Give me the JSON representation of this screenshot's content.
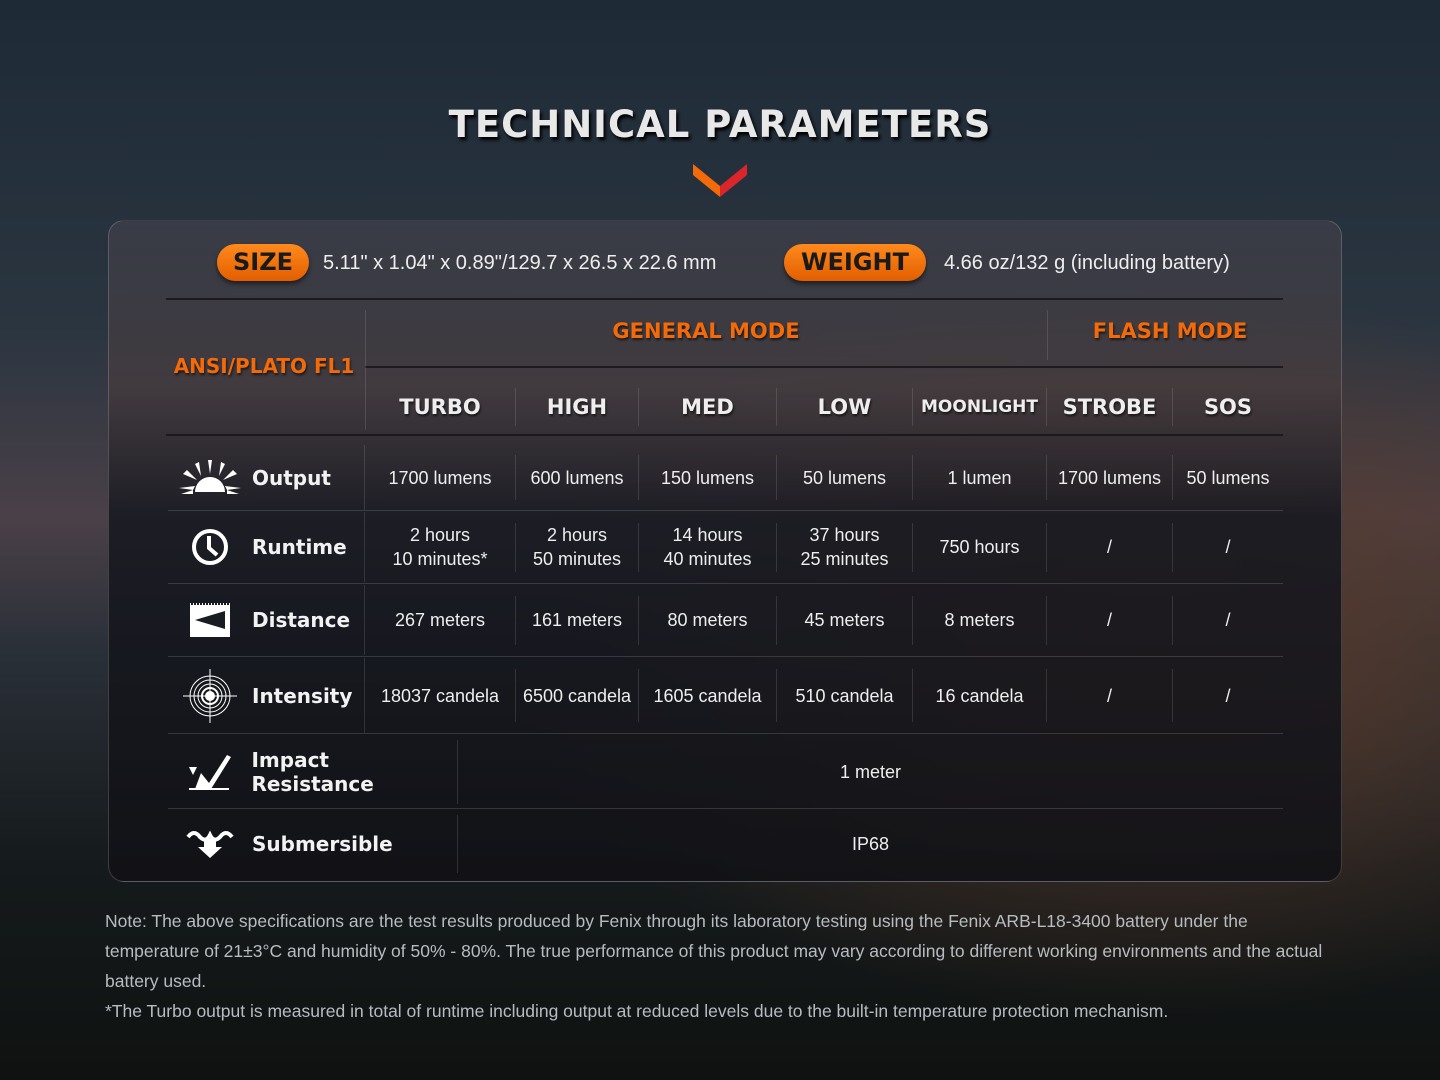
{
  "title": "TECHNICAL PARAMETERS",
  "size": {
    "label": "SIZE",
    "value": "5.11\" x 1.04\" x 0.89\"/129.7 x 26.5 x 22.6 mm"
  },
  "weight": {
    "label": "WEIGHT",
    "value": "4.66 oz/132 g (including battery)"
  },
  "header": {
    "standard": "ANSI/PLATO FL1",
    "general": "GENERAL MODE",
    "flash": "FLASH MODE",
    "modes": [
      "TURBO",
      "HIGH",
      "MED",
      "LOW",
      "MOONLIGHT",
      "STROBE",
      "SOS"
    ]
  },
  "rows": [
    {
      "label": "Output",
      "icon": "sunburst-icon",
      "values": [
        "1700 lumens",
        "600 lumens",
        "150 lumens",
        "50 lumens",
        "1 lumen",
        "1700 lumens",
        "50 lumens"
      ]
    },
    {
      "label": "Runtime",
      "icon": "clock-icon",
      "values": [
        "2 hours\n10 minutes*",
        "2 hours\n50 minutes",
        "14 hours\n40 minutes",
        "37 hours\n25 minutes",
        "750 hours",
        "/",
        "/"
      ]
    },
    {
      "label": "Distance",
      "icon": "distance-beam-icon",
      "values": [
        "267 meters",
        "161 meters",
        "80 meters",
        "45 meters",
        "8 meters",
        "/",
        "/"
      ]
    },
    {
      "label": "Intensity",
      "icon": "target-icon",
      "values": [
        "18037 candela",
        "6500 candela",
        "1605 candela",
        "510 candela",
        "16 candela",
        "/",
        "/"
      ]
    }
  ],
  "impact": {
    "label": "Impact Resistance",
    "icon": "impact-check-icon",
    "value": "1 meter"
  },
  "submersible": {
    "label": "Submersible",
    "icon": "water-arrow-icon",
    "value": "IP68"
  },
  "notes": [
    "Note: The above specifications are the test results produced by Fenix through its laboratory testing using the Fenix ARB-L18-3400 battery under the temperature of 21±3°C and humidity of 50% - 80%. The true performance of this product may vary according to different working environments and the actual battery used.",
    "*The Turbo output is measured in total of runtime including output at reduced levels due to the built-in temperature protection mechanism."
  ],
  "colors": {
    "accent": "#f26a0a",
    "chevron_left": "#f26a0a",
    "chevron_right": "#d8262a"
  }
}
